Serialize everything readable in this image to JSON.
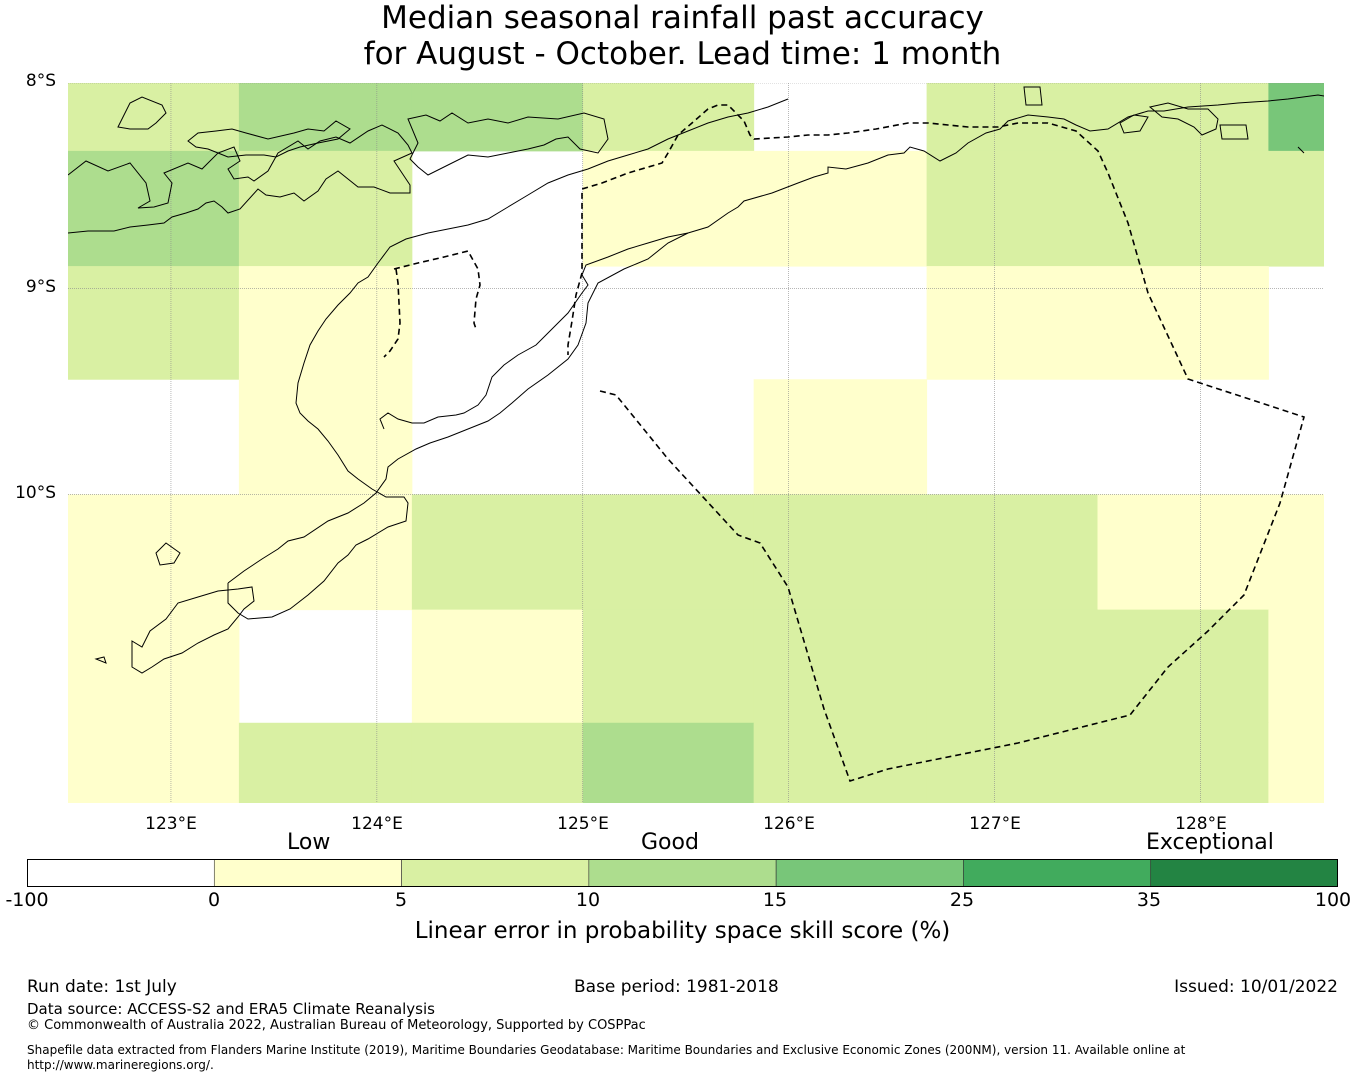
{
  "title": {
    "line1": "Median seasonal rainfall past accuracy",
    "line2": "for August - October. Lead time: 1 month"
  },
  "map": {
    "lon_labels": [
      "123°E",
      "124°E",
      "125°E",
      "126°E",
      "127°E",
      "128°E"
    ],
    "lat_labels": [
      "8°S",
      "9°S",
      "10°S"
    ],
    "lon_ticks": [
      123,
      124,
      125,
      126,
      127,
      128
    ],
    "lat_ticks": [
      -8,
      -9,
      -10
    ],
    "extent": {
      "lon_min": 122.5,
      "lon_max": 128.6,
      "lat_min": -11.5,
      "lat_max": -8.0
    },
    "lon_edges": [
      122.5,
      123.33,
      124.17,
      125.0,
      125.83,
      126.67,
      127.5,
      128.33,
      128.6
    ],
    "lat_edges": [
      -8.0,
      -8.33,
      -8.89,
      -9.44,
      -10.0,
      -10.56,
      -11.11,
      -11.5
    ],
    "skill_grid": [
      [
        1,
        2,
        2,
        1,
        -1,
        1,
        1,
        3
      ],
      [
        2,
        1,
        -1,
        0,
        0,
        1,
        1,
        1
      ],
      [
        1,
        0,
        -1,
        -1,
        -1,
        0,
        0,
        -1
      ],
      [
        -1,
        0,
        -1,
        -1,
        0,
        -1,
        -1,
        -1
      ],
      [
        0,
        0,
        1,
        1,
        1,
        1,
        0,
        0
      ],
      [
        0,
        -1,
        0,
        1,
        1,
        1,
        1,
        0
      ],
      [
        0,
        1,
        1,
        2,
        1,
        1,
        1,
        0
      ]
    ]
  },
  "colorbar": {
    "category_labels": [
      "Low",
      "Good",
      "Exceptional"
    ],
    "tick_labels": [
      "-100",
      "0",
      "5",
      "10",
      "15",
      "25",
      "35",
      "100"
    ],
    "colors": [
      "#ffffff",
      "#ffffcc",
      "#d9f0a3",
      "#addd8e",
      "#78c679",
      "#41ab5d",
      "#238443"
    ],
    "title": "Linear error in probability space skill score (%)"
  },
  "footer": {
    "run_date": "Run date: 1st July",
    "base_period": "Base period: 1981-2018",
    "issued": "Issued: 10/01/2022",
    "data_source": "Data source: ACCESS-S2 and ERA5 Climate Reanalysis",
    "copyright": "© Commonwealth of Australia 2022, Australian Bureau of Meteorology, Supported by COSPPac",
    "shapefile_line1": "Shapefile data extracted from Flanders Marine Institute (2019), Maritime Boundaries Geodatabase: Maritime Boundaries and Exclusive Economic Zones (200NM), version 11. Available online at",
    "shapefile_line2": "http://www.marineregions.org/."
  }
}
